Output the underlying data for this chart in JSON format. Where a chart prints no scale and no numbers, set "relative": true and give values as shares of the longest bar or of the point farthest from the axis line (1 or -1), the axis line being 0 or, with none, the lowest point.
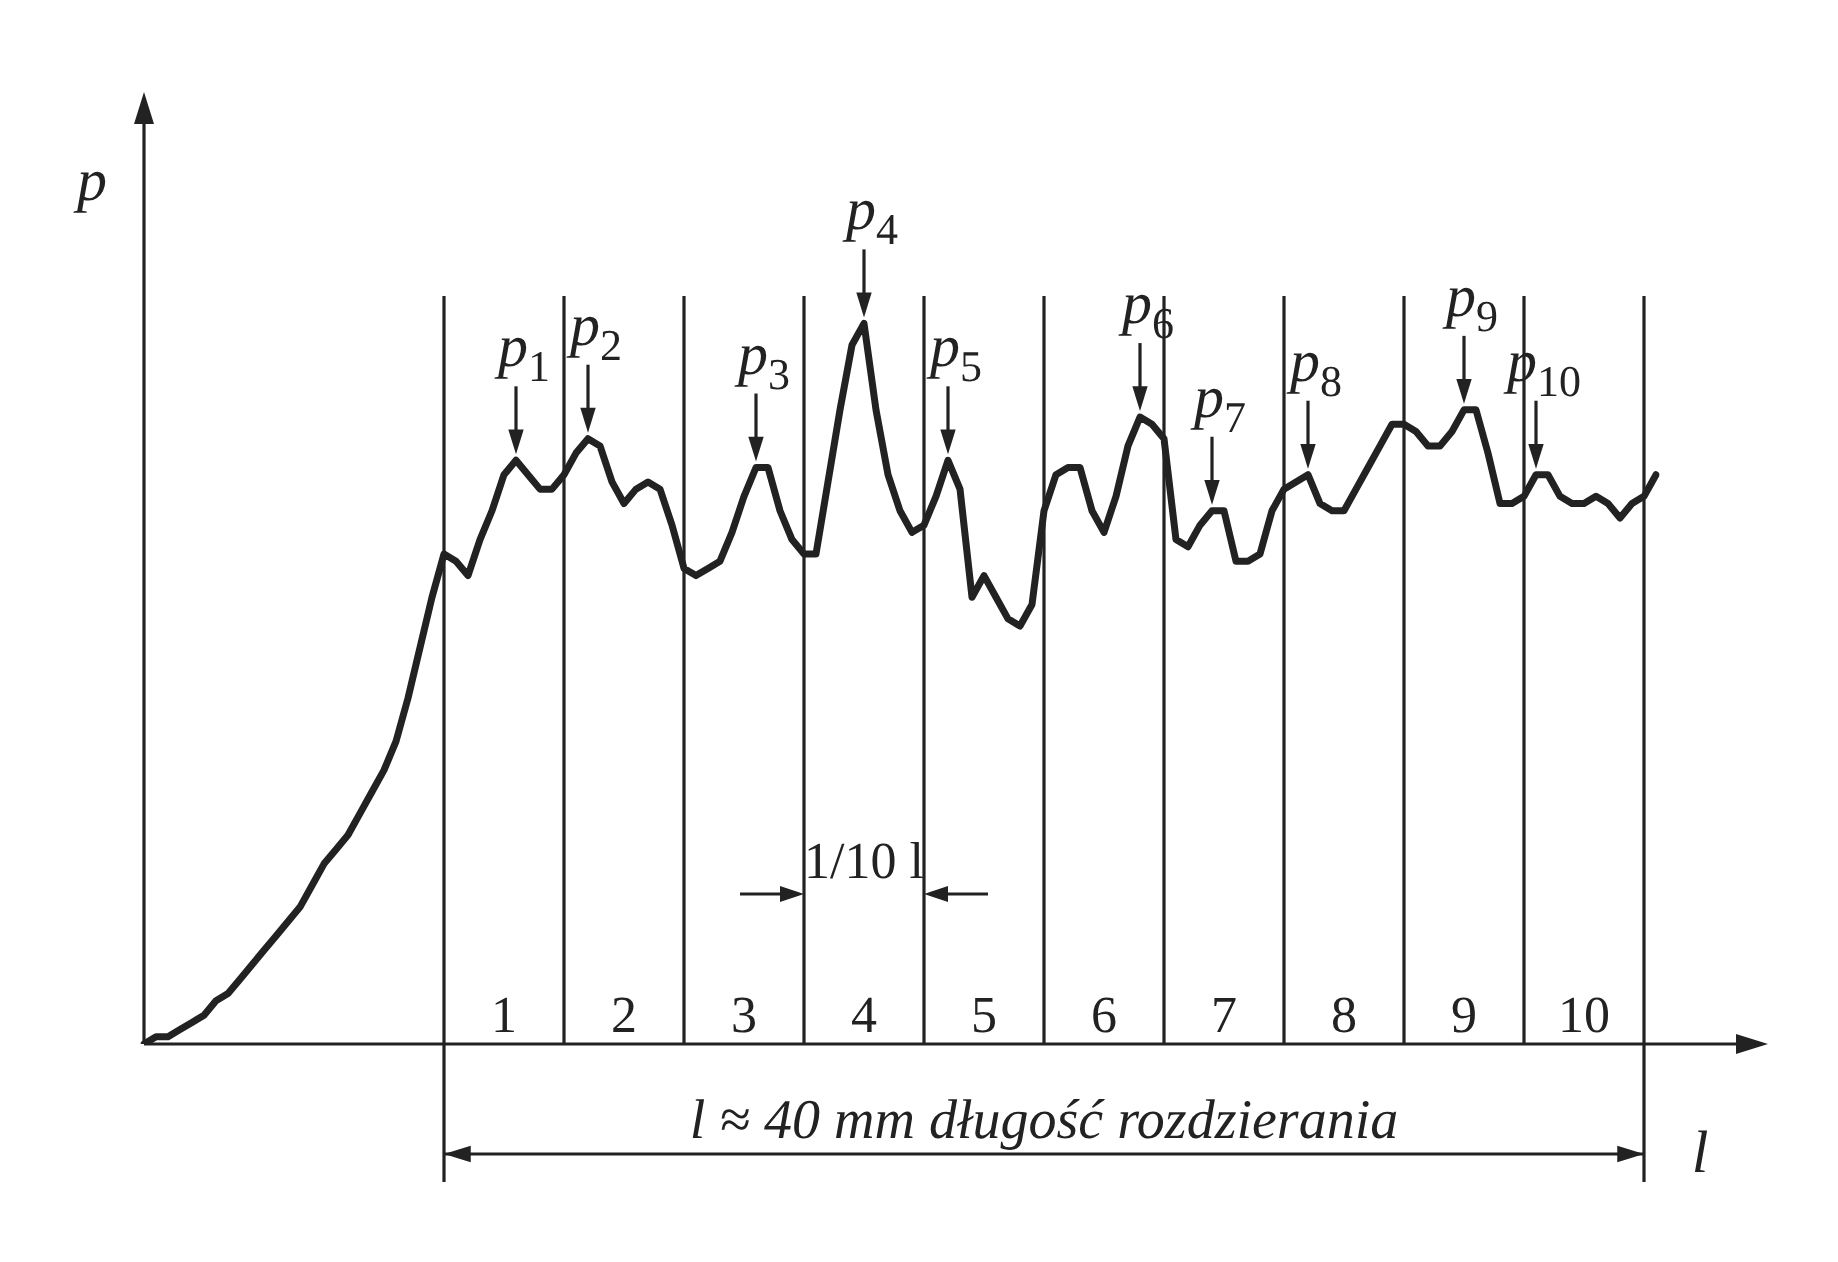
{
  "chart_data": {
    "type": "line",
    "relative": true,
    "tick_labels": false,
    "xlabel": "l",
    "ylabel": "p",
    "categories": [
      null,
      null,
      null,
      null,
      null,
      null,
      null,
      null,
      null,
      null,
      null,
      null,
      null,
      null,
      null,
      null,
      null,
      null,
      null,
      null,
      null,
      null,
      null,
      null,
      null,
      null,
      null,
      null,
      null,
      null,
      null,
      null,
      null,
      null,
      null,
      null,
      null,
      null,
      null,
      null,
      null,
      null,
      null,
      null,
      null,
      null,
      null,
      null,
      null,
      null,
      null,
      null,
      null,
      null,
      null,
      null,
      null,
      null,
      null,
      null,
      null,
      null,
      null,
      null,
      null,
      null,
      null,
      null,
      null,
      null,
      null,
      null,
      null,
      null,
      null,
      null,
      null,
      null,
      null,
      null,
      null,
      null,
      null,
      null,
      null,
      null,
      null,
      null,
      null,
      null,
      null,
      null,
      null,
      null,
      null,
      null,
      null,
      null,
      null,
      null,
      null,
      null,
      null,
      null,
      null,
      null,
      null,
      null,
      null,
      null,
      null,
      null,
      null,
      null,
      null,
      null,
      null,
      null,
      null,
      null,
      null,
      null,
      null,
      null,
      null,
      null,
      null
    ],
    "series": [
      {
        "color": "#222222",
        "values": [
          0,
          0.01,
          0.01,
          0.02,
          0.03,
          0.04,
          0.06,
          0.07,
          0.09,
          0.11,
          0.13,
          0.15,
          0.17,
          0.19,
          0.22,
          0.25,
          0.27,
          0.29,
          0.32,
          0.35,
          0.38,
          0.42,
          0.48,
          0.55,
          0.62,
          0.68,
          0.67,
          0.65,
          0.7,
          0.74,
          0.79,
          0.81,
          0.79,
          0.77,
          0.77,
          0.79,
          0.82,
          0.84,
          0.83,
          0.78,
          0.75,
          0.77,
          0.78,
          0.77,
          0.72,
          0.66,
          0.65,
          0.66,
          0.67,
          0.71,
          0.76,
          0.8,
          0.8,
          0.74,
          0.7,
          0.68,
          0.68,
          0.78,
          0.88,
          0.97,
          1,
          0.88,
          0.79,
          0.74,
          0.71,
          0.72,
          0.76,
          0.81,
          0.77,
          0.62,
          0.65,
          0.62,
          0.59,
          0.58,
          0.61,
          0.74,
          0.79,
          0.8,
          0.8,
          0.74,
          0.71,
          0.76,
          0.83,
          0.87,
          0.86,
          0.84,
          0.7,
          0.69,
          0.72,
          0.74,
          0.74,
          0.67,
          0.67,
          0.68,
          0.74,
          0.77,
          0.78,
          0.79,
          0.75,
          0.74,
          0.74,
          0.77,
          0.8,
          0.83,
          0.86,
          0.86,
          0.85,
          0.83,
          0.83,
          0.85,
          0.88,
          0.88,
          0.82,
          0.75,
          0.75,
          0.76,
          0.79,
          0.79,
          0.76,
          0.75,
          0.75,
          0.76,
          0.75,
          0.73,
          0.75,
          0.76,
          0.79
        ]
      }
    ],
    "annotations": [
      {
        "text": "p$_{1}$",
        "y": 0.81
      },
      {
        "text": "p$_{2}$",
        "y": 0.84
      },
      {
        "text": "p$_{3}$",
        "y": 0.8
      },
      {
        "text": "p$_{4}$",
        "y": 1
      },
      {
        "text": "p$_{5}$",
        "y": 0.81
      },
      {
        "text": "p$_{6}$",
        "y": 0.87
      },
      {
        "text": "p$_{7}$",
        "y": 0.74
      },
      {
        "text": "p$_{8}$",
        "y": 0.79
      },
      {
        "text": "p$_{9}$",
        "y": 0.88
      },
      {
        "text": "p$_{10}$",
        "y": 0.79
      },
      "1/10 l",
      "1",
      "2",
      "3",
      "4",
      "5",
      "6",
      "7",
      "8",
      "9",
      "10",
      "l ≈ 40 mm długość rozdzierania"
    ]
  }
}
